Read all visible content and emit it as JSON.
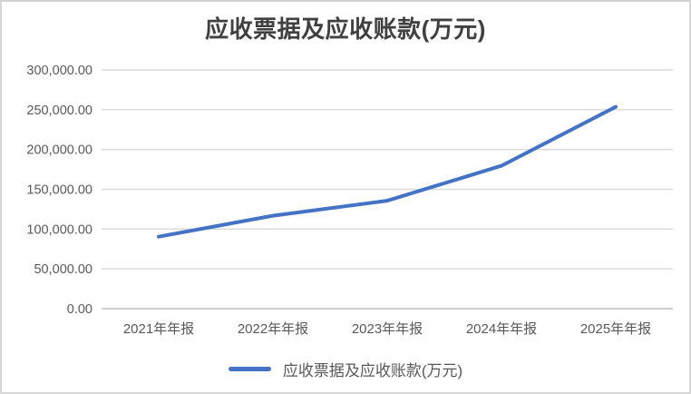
{
  "chart_data": {
    "type": "line",
    "title": "应收票据及应收账款(万元)",
    "categories": [
      "2021年年报",
      "2022年年报",
      "2023年年报",
      "2024年年报",
      "2025年年报"
    ],
    "series": [
      {
        "name": "应收票据及应收账款(万元)",
        "values": [
          90500,
          116800,
          135600,
          179600,
          253600
        ]
      }
    ],
    "ylim": [
      0,
      300000
    ],
    "ytick_interval": 50000,
    "ytick_labels": [
      "0.00",
      "50,000.00",
      "100,000.00",
      "150,000.00",
      "200,000.00",
      "250,000.00",
      "300,000.00"
    ],
    "grid": true,
    "legend_position": "bottom",
    "style": {
      "line_color": "#4472C4",
      "gridline_color": "#D9D9D9",
      "axis_line_color": "#BFBFBF",
      "tick_label_color": "#595959",
      "title_color": "#404040",
      "line_width": 4
    }
  }
}
